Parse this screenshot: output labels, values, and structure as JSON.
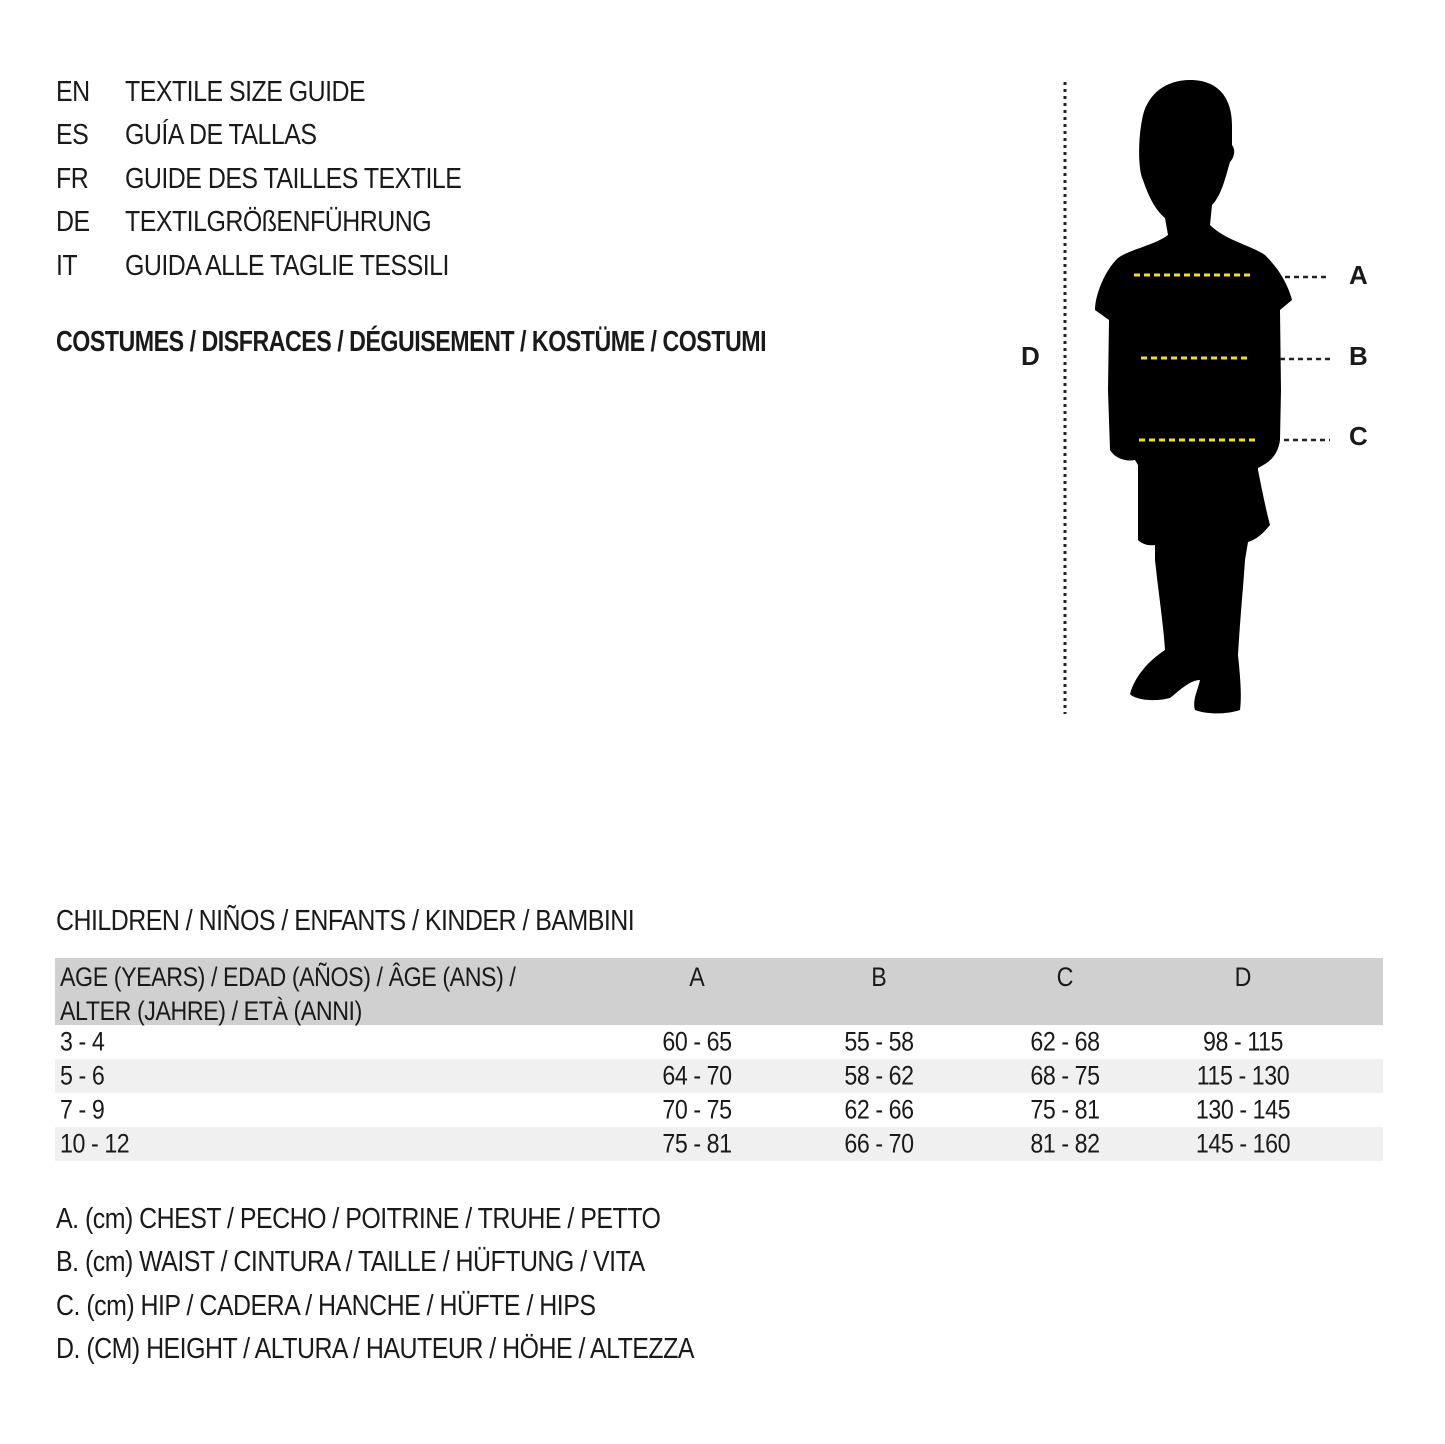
{
  "header": {
    "languages": [
      {
        "code": "EN",
        "text": "TEXTILE SIZE GUIDE"
      },
      {
        "code": "ES",
        "text": "GUÍA DE TALLAS"
      },
      {
        "code": "FR",
        "text": "GUIDE DES TAILLES TEXTILE"
      },
      {
        "code": "DE",
        "text": "TEXTILGRÖßENFÜHRUNG"
      },
      {
        "code": "IT",
        "text": "GUIDA ALLE TAGLIE TESSILI"
      }
    ],
    "category": "COSTUMES / DISFRACES / DÉGUISEMENT / KOSTÜME / COSTUMI"
  },
  "figure": {
    "labels": {
      "a": "A",
      "b": "B",
      "c": "C",
      "d": "D"
    },
    "measure_line_color": "#f2e01e"
  },
  "table": {
    "title": "CHILDREN / NIÑOS / ENFANTS / KINDER / BAMBINI",
    "header": {
      "age_line1": "AGE (YEARS) / EDAD (AÑOS) / ÂGE (ANS) /",
      "age_line2": "ALTER (JAHRE) / ETÀ (ANNI)",
      "columns": [
        "A",
        "B",
        "C",
        "D"
      ]
    },
    "rows": [
      {
        "age": "3 - 4",
        "a": "60 - 65",
        "b": "55 - 58",
        "c": "62 - 68",
        "d": "98 - 115"
      },
      {
        "age": "5 - 6",
        "a": "64 - 70",
        "b": "58 - 62",
        "c": "68 - 75",
        "d": "115 - 130"
      },
      {
        "age": "7 - 9",
        "a": "70 - 75",
        "b": "62 - 66",
        "c": "75 - 81",
        "d": "130 - 145"
      },
      {
        "age": "10 - 12",
        "a": "75 - 81",
        "b": "66 - 70",
        "c": "81 - 82",
        "d": "145 - 160"
      }
    ],
    "header_bg": "#d0d0d0",
    "stripe_bg": "#f0f0f0"
  },
  "legend": [
    "A. (cm) CHEST / PECHO / POITRINE / TRUHE / PETTO",
    "B. (cm) WAIST / CINTURA / TAILLE / HÜFTUNG / VITA",
    "C. (cm) HIP / CADERA / HANCHE / HÜFTE / HIPS",
    "D. (CM) HEIGHT / ALTURA / HAUTEUR / HÖHE / ALTEZZA"
  ]
}
